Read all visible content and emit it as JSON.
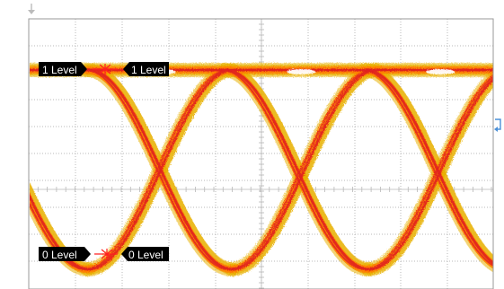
{
  "markers": {
    "one_level_left": "1 Level",
    "one_level_right": "1 Level",
    "zero_level_left": "0 Level",
    "zero_level_right": "0 Level"
  },
  "icons": {
    "top_reference": "down-arrow-icon",
    "right_reference": "return-arrow-icon"
  },
  "colors": {
    "background": "#ffffff",
    "grid": "#b8b8b8",
    "frame": "#9a9a9a",
    "trace_outer": "#e8b000",
    "trace_mid": "#ff7a00",
    "trace_inner": "#e02020",
    "trace_hot": "#ffffff",
    "marker_bg": "#000000",
    "marker_x": "#ff2020"
  }
}
